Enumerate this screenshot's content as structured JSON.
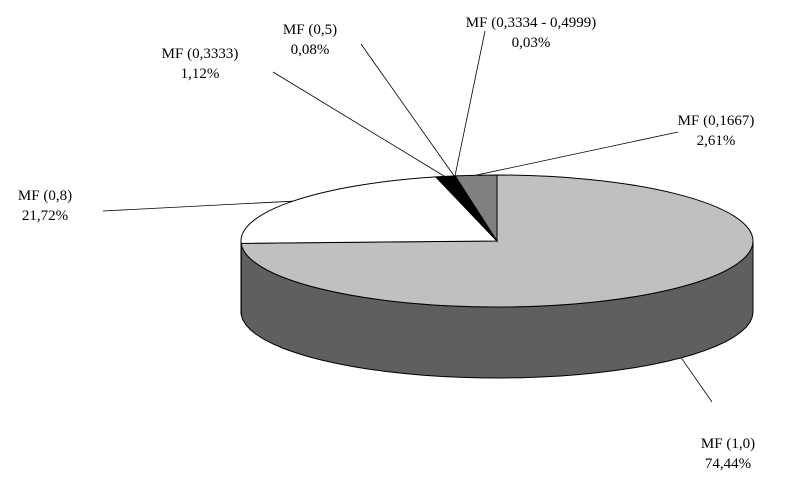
{
  "chart_data": {
    "type": "pie",
    "style": "3d",
    "slices": [
      {
        "label": "MF (1,0)",
        "value": 74.44,
        "value_text": "74,44%",
        "color": "#c0c0c0",
        "side_color": "#5f5f5f"
      },
      {
        "label": "MF (0,8)",
        "value": 21.72,
        "value_text": "21,72%",
        "color": "#ffffff",
        "side_color": "#ffffff"
      },
      {
        "label": "MF (0,3333)",
        "value": 1.12,
        "value_text": "1,12%",
        "color": "#000000",
        "side_color": "#000000"
      },
      {
        "label": "MF (0,5)",
        "value": 0.08,
        "value_text": "0,08%",
        "color": "#ffffff",
        "side_color": "#ffffff"
      },
      {
        "label": "MF (0,3334 - 0,4999)",
        "value": 0.03,
        "value_text": "0,03%",
        "color": "#333333",
        "side_color": "#333333"
      },
      {
        "label": "MF (0,1667)",
        "value": 2.61,
        "value_text": "2,61%",
        "color": "#808080",
        "side_color": "#808080"
      }
    ],
    "start_angle_deg": 90,
    "direction": "clockwise",
    "legend": "none"
  }
}
